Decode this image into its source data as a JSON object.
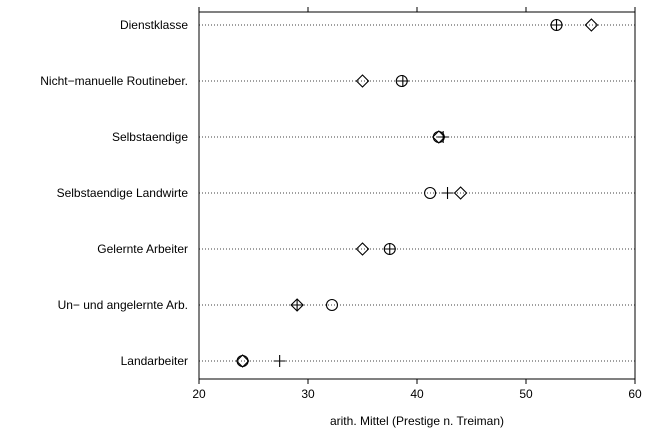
{
  "chart_data": {
    "type": "scatter",
    "subtype": "dot-plot",
    "xlabel": "arith. Mittel (Prestige n. Treiman)",
    "xlim": [
      20,
      60
    ],
    "xticks": [
      20,
      30,
      40,
      50,
      60
    ],
    "categories": [
      "Dienstklasse",
      "Nicht−manuelle Routineber.",
      "Selbstaendige",
      "Selbstaendige Landwirte",
      "Gelernte Arbeiter",
      "Un− und angelernte Arb.",
      "Landarbeiter"
    ],
    "series": [
      {
        "marker": "circle",
        "values": [
          52.8,
          38.6,
          42.0,
          41.2,
          37.5,
          32.2,
          24.0
        ]
      },
      {
        "marker": "plus",
        "values": [
          52.8,
          38.7,
          42.4,
          42.8,
          37.5,
          29.0,
          27.4
        ]
      },
      {
        "marker": "diamond",
        "values": [
          56.0,
          35.0,
          42.0,
          44.0,
          35.0,
          29.0,
          24.0
        ]
      }
    ],
    "grid": "dotted-horizontal",
    "legend": "none"
  }
}
